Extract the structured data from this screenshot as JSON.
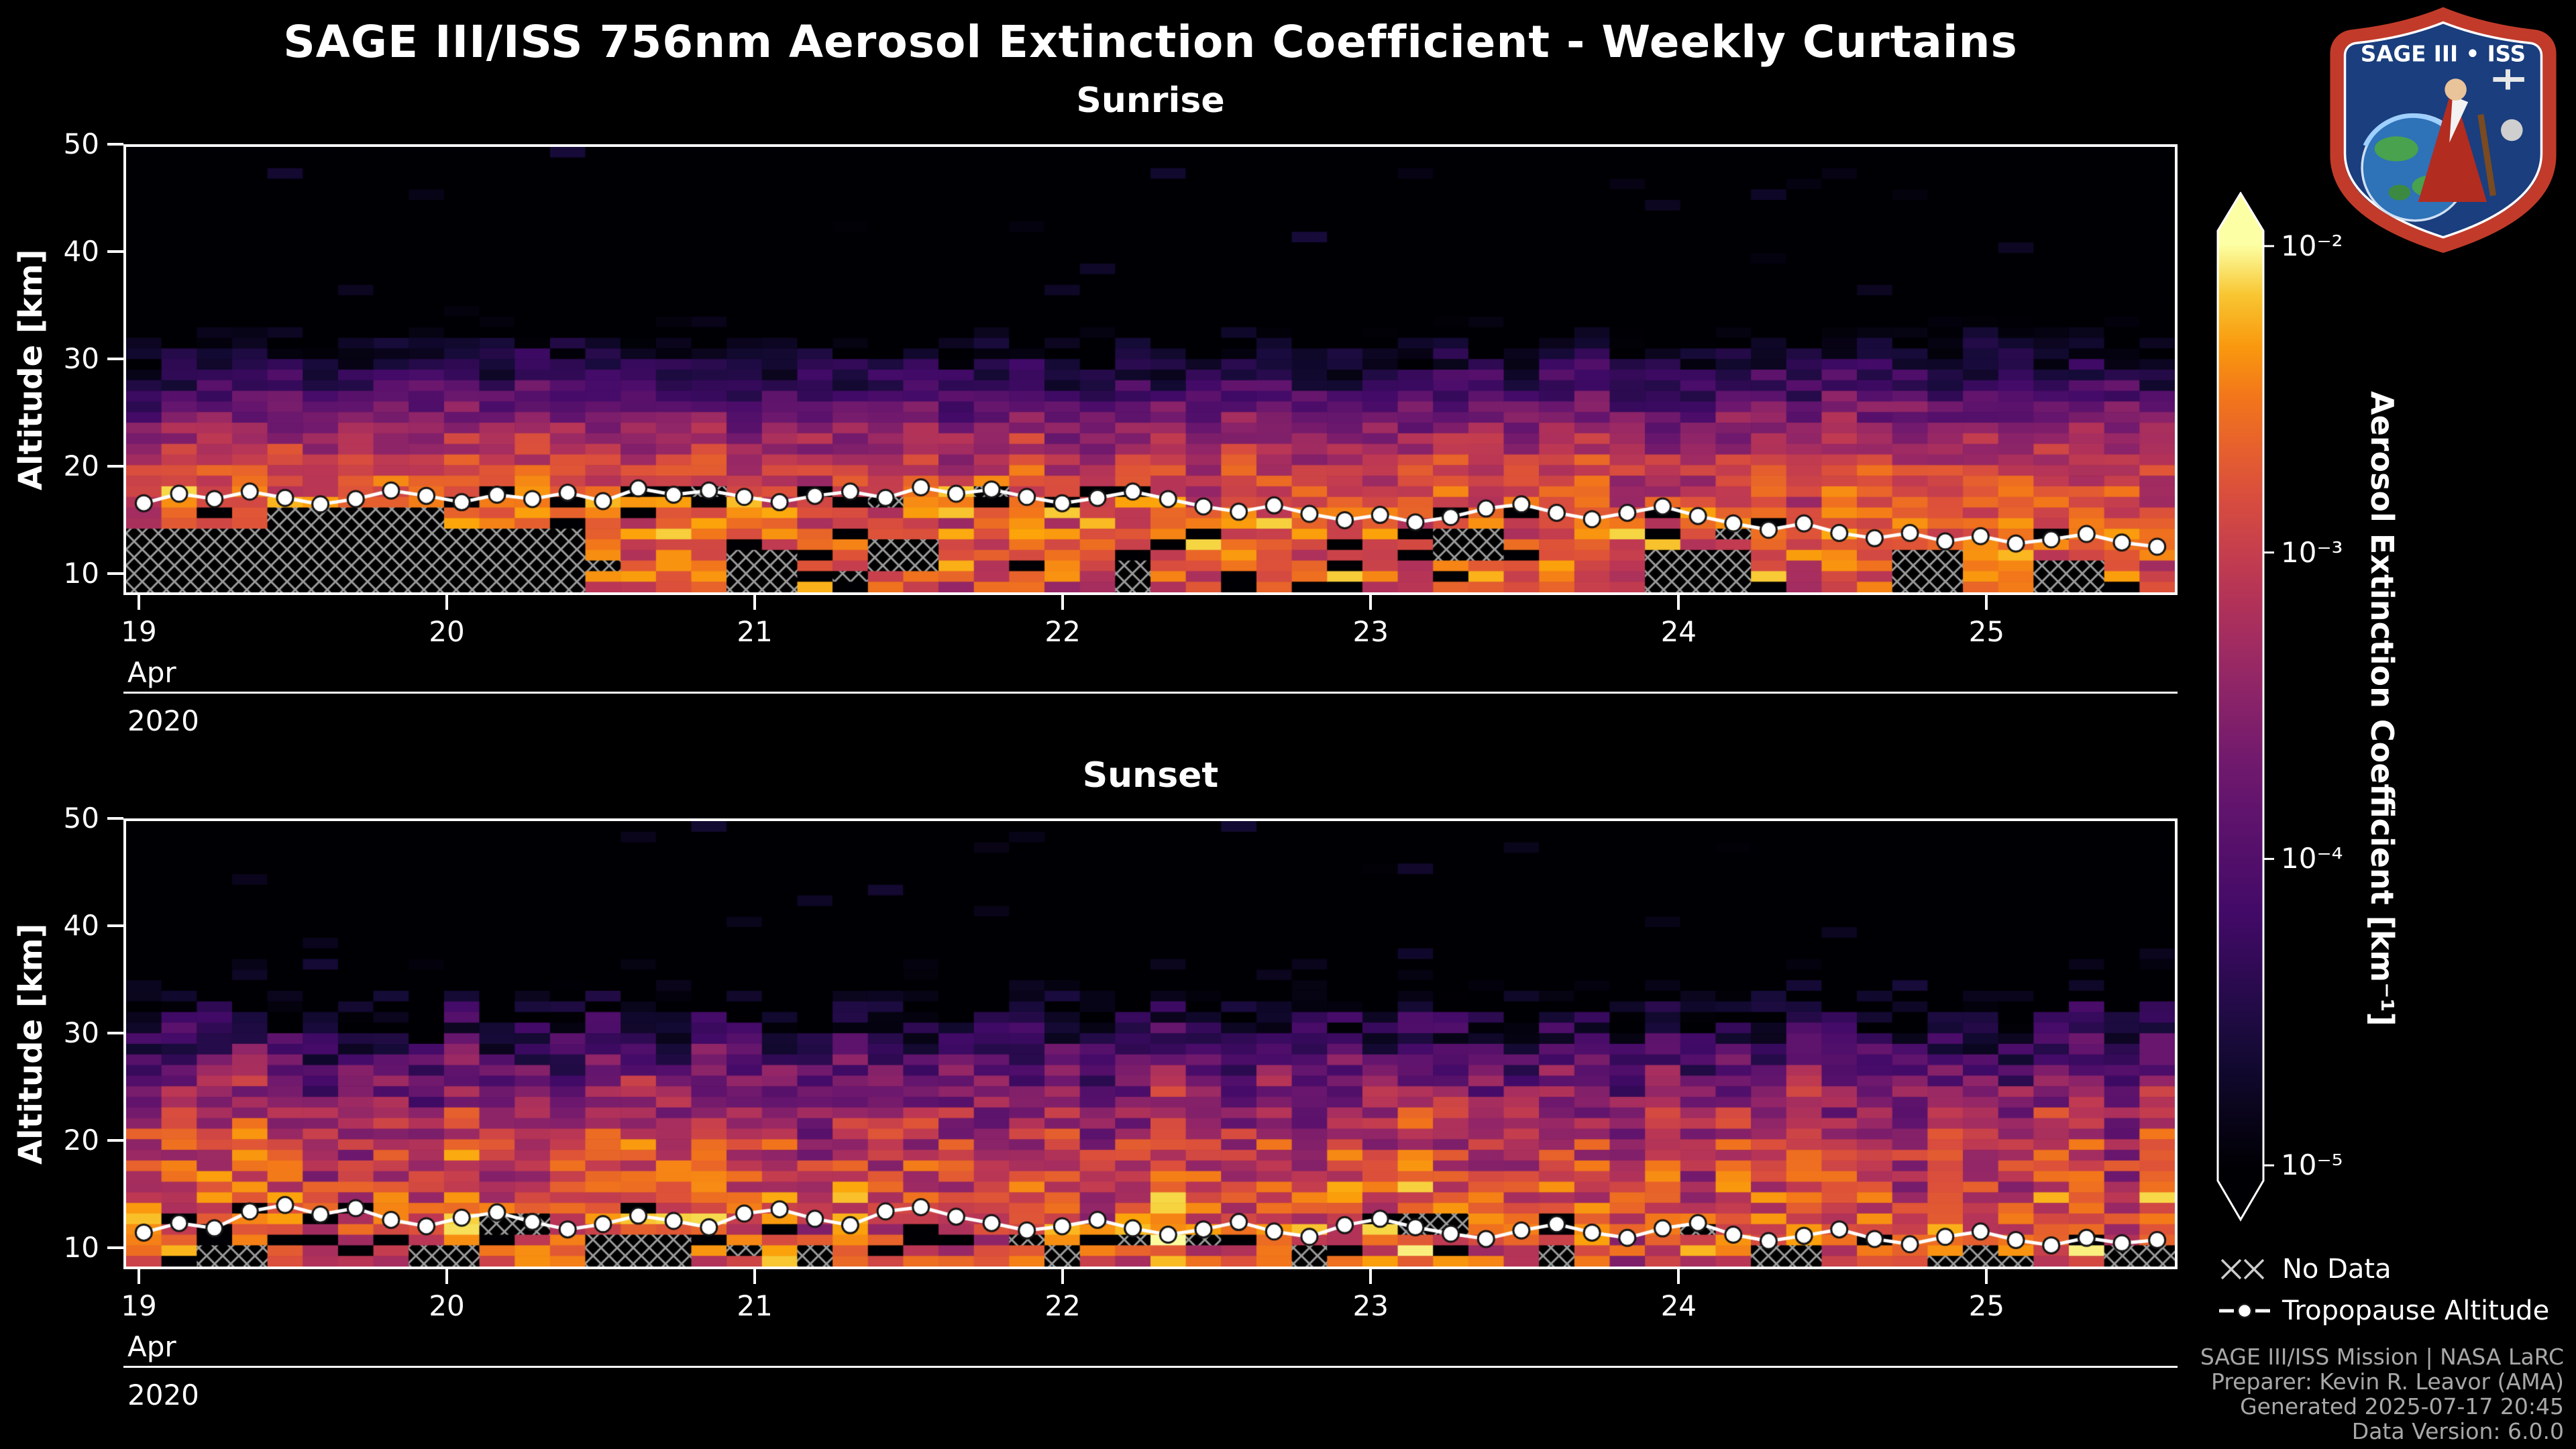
{
  "title": "SAGE III/ISS 756nm Aerosol Extinction Coefficient - Weekly Curtains",
  "panels": [
    {
      "id": "sunrise",
      "title": "Sunrise"
    },
    {
      "id": "sunset",
      "title": "Sunset"
    }
  ],
  "axes": {
    "y_label": "Altitude [km]",
    "y_ticks": [
      10,
      20,
      30,
      40,
      50
    ],
    "x_ticks": [
      19,
      20,
      21,
      22,
      23,
      24,
      25
    ],
    "x_month": "Apr",
    "x_year": "2020"
  },
  "colorbar": {
    "label": "Aerosol Extinction Coefficient [km⁻¹]",
    "ticks": [
      "10⁻²",
      "10⁻³",
      "10⁻⁴",
      "10⁻⁵"
    ]
  },
  "legend": {
    "no_data": "No Data",
    "tropopause": "Tropopause Altitude"
  },
  "footer": {
    "lines": [
      "SAGE III/ISS Mission | NASA LaRC",
      "Preparer: Kevin R. Leavor (AMA)",
      "Generated 2025-07-17 20:45",
      "Data Version: 6.0.0"
    ]
  },
  "logo": {
    "text": "SAGE III • ISS"
  },
  "chart_data": {
    "type": "heatmap",
    "title": "SAGE III/ISS 756nm Aerosol Extinction Coefficient - Weekly Curtains",
    "panels": [
      "Sunrise",
      "Sunset"
    ],
    "x_axis": {
      "month": "Apr",
      "year": "2020",
      "tick_days": [
        19,
        20,
        21,
        22,
        23,
        24,
        25
      ],
      "range_days": [
        18.95,
        25.62
      ]
    },
    "y_axis": {
      "label": "Altitude [km]",
      "ticks": [
        10,
        20,
        30,
        40,
        50
      ],
      "range_km": [
        8,
        50
      ]
    },
    "color_axis": {
      "label": "Aerosol Extinction Coefficient [km⁻¹]",
      "scale": "log",
      "range": [
        1e-05,
        0.01
      ],
      "tick_values": [
        0.01,
        0.001,
        0.0001,
        1e-05
      ],
      "tick_labels": [
        "10⁻²",
        "10⁻³",
        "10⁻⁴",
        "10⁻⁵"
      ],
      "colormap": "inferno",
      "legend_position": "right"
    },
    "tropopause_series": [
      {
        "name": "Sunrise Tropopause Altitude",
        "altitudes_km": [
          16.4,
          17.3,
          16.8,
          17.5,
          16.9,
          16.3,
          16.8,
          17.6,
          17.1,
          16.5,
          17.2,
          16.8,
          17.4,
          16.6,
          17.8,
          17.2,
          17.6,
          17.0,
          16.5,
          17.1,
          17.5,
          16.9,
          17.9,
          17.3,
          17.7,
          17.0,
          16.4,
          16.9,
          17.5,
          16.8,
          16.1,
          15.6,
          16.2,
          15.4,
          14.8,
          15.3,
          14.6,
          15.1,
          15.9,
          16.3,
          15.5,
          14.9,
          15.5,
          16.1,
          15.2,
          14.5,
          13.9,
          14.5,
          13.6,
          13.1,
          13.6,
          12.8,
          13.3,
          12.6,
          13.0,
          13.5,
          12.7,
          12.3
        ]
      },
      {
        "name": "Sunset Tropopause Altitude",
        "altitudes_km": [
          11.2,
          12.1,
          11.6,
          13.2,
          13.8,
          12.9,
          13.5,
          12.4,
          11.8,
          12.6,
          13.1,
          12.2,
          11.5,
          12.0,
          12.8,
          12.3,
          11.7,
          13.0,
          13.4,
          12.5,
          11.9,
          13.2,
          13.6,
          12.7,
          12.1,
          11.4,
          11.8,
          12.4,
          11.6,
          11.0,
          11.5,
          12.2,
          11.3,
          10.8,
          11.9,
          12.5,
          11.7,
          11.1,
          10.6,
          11.4,
          12.0,
          11.2,
          10.7,
          11.6,
          12.1,
          11.0,
          10.4,
          10.9,
          11.5,
          10.6,
          10.1,
          10.8,
          11.3,
          10.5,
          10.0,
          10.7,
          10.2,
          10.5
        ]
      }
    ],
    "extinction_profile_estimate_log10_km": {
      "sunrise": [
        [
          8,
          -2.85
        ],
        [
          12,
          -2.75
        ],
        [
          16,
          -2.8
        ],
        [
          20,
          -3.0
        ],
        [
          23,
          -3.4
        ],
        [
          26,
          -3.9
        ],
        [
          29,
          -4.5
        ],
        [
          32,
          -5.0
        ],
        [
          34,
          -5.4
        ],
        [
          37,
          -6.0
        ],
        [
          50,
          -6.6
        ]
      ],
      "sunset": [
        [
          8,
          -2.85
        ],
        [
          12,
          -2.75
        ],
        [
          16,
          -2.9
        ],
        [
          20,
          -3.1
        ],
        [
          24,
          -3.5
        ],
        [
          28,
          -4.1
        ],
        [
          32,
          -4.8
        ],
        [
          35,
          -5.4
        ],
        [
          38,
          -5.9
        ],
        [
          42,
          -6.4
        ],
        [
          50,
          -6.9
        ]
      ]
    },
    "render_params": {
      "ncols": 58,
      "row_km": 1,
      "log_min": -5,
      "log_max": -2,
      "colormap": [
        [
          0,
          "#000004"
        ],
        [
          0.13,
          "#160b39"
        ],
        [
          0.27,
          "#420a68"
        ],
        [
          0.42,
          "#6a176e"
        ],
        [
          0.53,
          "#932667"
        ],
        [
          0.64,
          "#bc3754"
        ],
        [
          0.74,
          "#dd513a"
        ],
        [
          0.84,
          "#f37819"
        ],
        [
          0.91,
          "#fca50a"
        ],
        [
          0.965,
          "#f6d746"
        ],
        [
          1,
          "#fcffa4"
        ]
      ],
      "panels": {
        "sunrise": {
          "seed": 7,
          "cell_noise": 0.4,
          "col_noise": 0.2,
          "yellow_p": 0.2,
          "black_p": 0.14,
          "no_data_p": 0.015,
          "speck_p": 0.015,
          "profile": [
            [
              8,
              -2.85
            ],
            [
              12,
              -2.75
            ],
            [
              16,
              -2.8
            ],
            [
              20,
              -3.0
            ],
            [
              23,
              -3.4
            ],
            [
              26,
              -3.9
            ],
            [
              29,
              -4.5
            ],
            [
              32,
              -5.0
            ],
            [
              34,
              -5.4
            ],
            [
              37,
              -6.0
            ],
            [
              50,
              -6.6
            ]
          ],
          "no_data_clusters": [
            [
              19.0,
              19.4,
              8,
              13.5
            ],
            [
              19.45,
              19.95,
              8,
              16
            ],
            [
              20.0,
              20.45,
              8,
              13.5
            ],
            [
              20.9,
              21.15,
              8,
              12
            ],
            [
              21.4,
              21.55,
              10,
              13
            ],
            [
              22.15,
              22.3,
              8,
              11
            ],
            [
              23.2,
              23.45,
              11,
              14
            ],
            [
              23.9,
              24.2,
              8,
              12
            ],
            [
              24.7,
              24.95,
              8,
              12
            ],
            [
              25.15,
              25.4,
              8,
              11
            ]
          ]
        },
        "sunset": {
          "seed": 13,
          "cell_noise": 0.55,
          "col_noise": 0.3,
          "yellow_p": 0.15,
          "black_p": 0.1,
          "no_data_p": 0.01,
          "speck_p": 0.03,
          "profile": [
            [
              8,
              -2.85
            ],
            [
              12,
              -2.75
            ],
            [
              16,
              -2.9
            ],
            [
              20,
              -3.1
            ],
            [
              24,
              -3.5
            ],
            [
              28,
              -4.1
            ],
            [
              32,
              -4.8
            ],
            [
              35,
              -5.4
            ],
            [
              38,
              -5.9
            ],
            [
              42,
              -6.4
            ],
            [
              50,
              -6.9
            ]
          ],
          "no_data_clusters": [
            [
              19.2,
              19.4,
              8,
              10
            ],
            [
              19.9,
              20.1,
              8,
              10
            ],
            [
              20.5,
              20.8,
              8,
              11
            ],
            [
              21.1,
              21.3,
              8,
              10
            ],
            [
              21.9,
              22.1,
              8,
              10
            ],
            [
              22.7,
              22.9,
              8,
              10
            ],
            [
              23.5,
              23.7,
              8,
              10
            ],
            [
              24.2,
              24.5,
              8,
              10
            ],
            [
              24.9,
              25.1,
              8,
              10
            ],
            [
              25.35,
              25.6,
              8,
              10
            ],
            [
              20.1,
              20.3,
              11,
              13
            ],
            [
              23.1,
              23.3,
              11,
              13
            ]
          ]
        }
      }
    }
  }
}
